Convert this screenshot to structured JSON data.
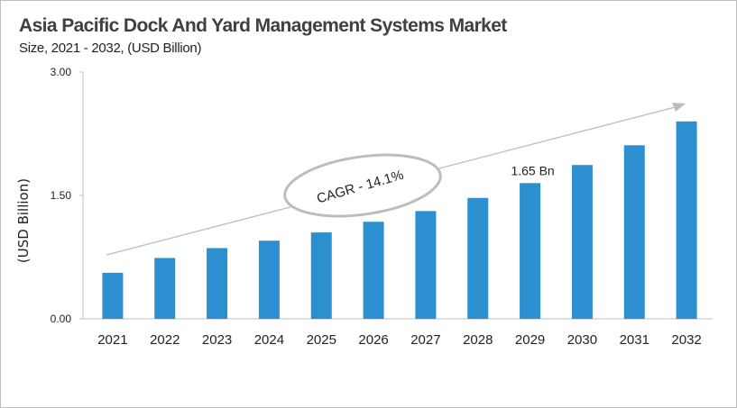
{
  "chart_data": {
    "type": "bar",
    "title": "Asia Pacific Dock And Yard Management Systems Market",
    "subtitle": "Size, 2021 - 2032, (USD Billion)",
    "ylabel": "(USD Billion)",
    "xlabel": "",
    "ylim": [
      0,
      3
    ],
    "yticks": [
      "0.00",
      "1.50",
      "3.00"
    ],
    "ytick_values": [
      0,
      1.5,
      3
    ],
    "categories": [
      "2021",
      "2022",
      "2023",
      "2024",
      "2025",
      "2026",
      "2027",
      "2028",
      "2029",
      "2030",
      "2031",
      "2032"
    ],
    "values": [
      0.56,
      0.74,
      0.86,
      0.95,
      1.05,
      1.18,
      1.31,
      1.47,
      1.65,
      1.87,
      2.11,
      2.4
    ],
    "bar_color": "#2b8fd0",
    "grid": false,
    "annotations": {
      "cagr": "CAGR - 14.1%",
      "value_label": "1.65 Bn",
      "value_label_category": "2029"
    }
  }
}
